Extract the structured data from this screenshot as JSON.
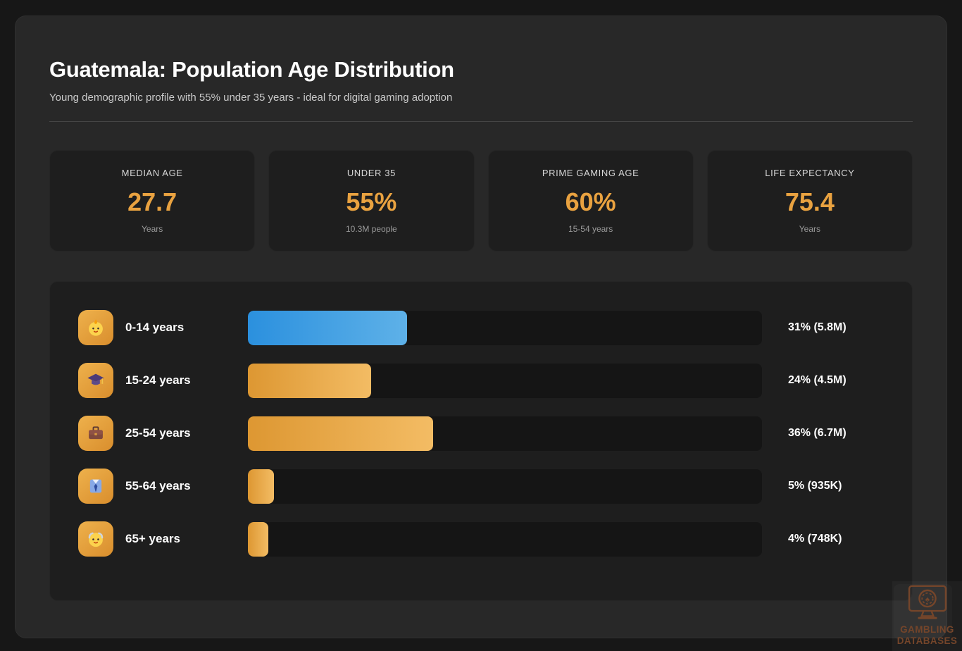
{
  "header": {
    "title": "Guatemala: Population Age Distribution",
    "subtitle": "Young demographic profile with 55% under 35 years - ideal for digital gaming adoption"
  },
  "stats": [
    {
      "label": "MEDIAN AGE",
      "value": "27.7",
      "sub": "Years"
    },
    {
      "label": "UNDER 35",
      "value": "55%",
      "sub": "10.3M people"
    },
    {
      "label": "PRIME GAMING AGE",
      "value": "60%",
      "sub": "15-54 years"
    },
    {
      "label": "LIFE EXPECTANCY",
      "value": "75.4",
      "sub": "Years"
    }
  ],
  "chart_data": {
    "type": "bar",
    "orientation": "horizontal",
    "categories": [
      "0-14 years",
      "15-24 years",
      "25-54 years",
      "55-64 years",
      "65+ years"
    ],
    "values": [
      31,
      24,
      36,
      5,
      4
    ],
    "value_labels": [
      "31% (5.8M)",
      "24% (4.5M)",
      "36% (6.7M)",
      "5% (935K)",
      "4% (748K)"
    ],
    "populations": [
      "5.8M",
      "4.5M",
      "6.7M",
      "935K",
      "748K"
    ],
    "icons": [
      "baby-icon",
      "graduation-cap-icon",
      "briefcase-icon",
      "necktie-icon",
      "older-man-icon"
    ],
    "bar_styles": [
      "blue",
      "orange",
      "orange",
      "orange",
      "orange"
    ],
    "xlim": [
      0,
      100
    ],
    "grid": false,
    "legend": false,
    "colors": {
      "blue_start": "#2b90de",
      "blue_end": "#5eb1e8",
      "orange_start": "#dd9732",
      "orange_end": "#f3bc64",
      "accent": "#e9a240",
      "track": "#151515"
    }
  },
  "watermark": {
    "line1": "GAMBLING",
    "line2": "DATABASES",
    "symbol": "♠"
  }
}
